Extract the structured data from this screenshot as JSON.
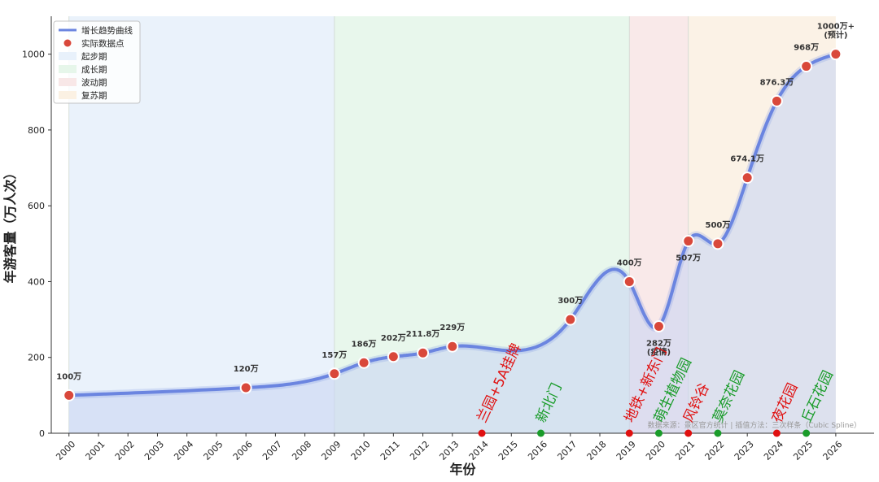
{
  "chart_data": {
    "type": "line",
    "xlabel": "年份",
    "ylabel": "年游客量（万人次）",
    "xlim": [
      1999.4,
      2027.3
    ],
    "ylim": [
      0,
      1100
    ],
    "x_ticks": [
      2000,
      2001,
      2002,
      2003,
      2004,
      2005,
      2006,
      2007,
      2008,
      2009,
      2010,
      2011,
      2012,
      2013,
      2014,
      2015,
      2016,
      2017,
      2018,
      2019,
      2020,
      2021,
      2022,
      2023,
      2024,
      2025,
      2026
    ],
    "y_ticks": [
      0,
      200,
      400,
      600,
      800,
      1000
    ],
    "legend": {
      "placement": "top-left",
      "entries": [
        {
          "label": "增长趋势曲线",
          "kind": "line",
          "color": "#6b85e0"
        },
        {
          "label": "实际数据点",
          "kind": "marker",
          "color": "#d9483b"
        },
        {
          "label": "起步期",
          "kind": "patch",
          "color": "#e8f1fb"
        },
        {
          "label": "成长期",
          "kind": "patch",
          "color": "#e6f6ea"
        },
        {
          "label": "波动期",
          "kind": "patch",
          "color": "#f8e7e7"
        },
        {
          "label": "复苏期",
          "kind": "patch",
          "color": "#fbf1e3"
        }
      ]
    },
    "phases": [
      {
        "name": "起步期",
        "from": 2000,
        "to": 2009,
        "color": "#e8f1fb"
      },
      {
        "name": "成长期",
        "from": 2009,
        "to": 2019,
        "color": "#e6f6ea"
      },
      {
        "name": "波动期",
        "from": 2019,
        "to": 2021,
        "color": "#f8e7e7"
      },
      {
        "name": "复苏期",
        "from": 2021,
        "to": 2026,
        "color": "#fbf1e3"
      }
    ],
    "series": [
      {
        "name": "实际数据点",
        "x": [
          2000,
          2006,
          2009,
          2010,
          2011,
          2012,
          2013,
          2017,
          2019,
          2020,
          2021,
          2022,
          2023,
          2024,
          2025,
          2026
        ],
        "y": [
          100,
          120,
          157,
          186,
          202,
          211.8,
          229,
          300,
          400,
          282,
          507,
          500,
          674.1,
          876.3,
          968,
          1000
        ],
        "labels": [
          "100万",
          "120万",
          "157万",
          "186万",
          "202万",
          "211.8万",
          "229万",
          "300万",
          "400万",
          "282万\n(疫情)",
          "507万",
          "500万",
          "674.1万",
          "876.3万",
          "968万",
          "1000万+\n(预计)"
        ],
        "label_colors": [
          "#333",
          "#333",
          "#333",
          "#333",
          "#333",
          "#333",
          "#333",
          "#333",
          "#333",
          "#d9483b",
          "#333",
          "#333",
          "#333",
          "#333",
          "#333",
          "#2e9e4a"
        ],
        "label_below": [
          false,
          false,
          false,
          false,
          false,
          false,
          false,
          false,
          false,
          true,
          true,
          false,
          false,
          false,
          false,
          false
        ]
      }
    ],
    "events": [
      {
        "year": 2014,
        "label": "兰园+5A挂牌",
        "color": "#e01010"
      },
      {
        "year": 2016,
        "label": "新北门",
        "color": "#1a9c2a"
      },
      {
        "year": 2019,
        "label": "地铁+新东门",
        "color": "#e01010"
      },
      {
        "year": 2020,
        "label": "萌生植物园",
        "color": "#1a9c2a"
      },
      {
        "year": 2021,
        "label": "风铃谷",
        "color": "#e01010"
      },
      {
        "year": 2022,
        "label": "莫奈花园",
        "color": "#1a9c2a"
      },
      {
        "year": 2024,
        "label": "夜花园",
        "color": "#e01010"
      },
      {
        "year": 2025,
        "label": "丘石花园",
        "color": "#1a9c2a"
      }
    ],
    "source_note": "数据来源：景区官方统计 | 插值方法：三次样条（Cubic Spline）",
    "line_color": "#6b85e0",
    "fill_color": "#c9d5f3",
    "marker_color": "#d9483b"
  }
}
